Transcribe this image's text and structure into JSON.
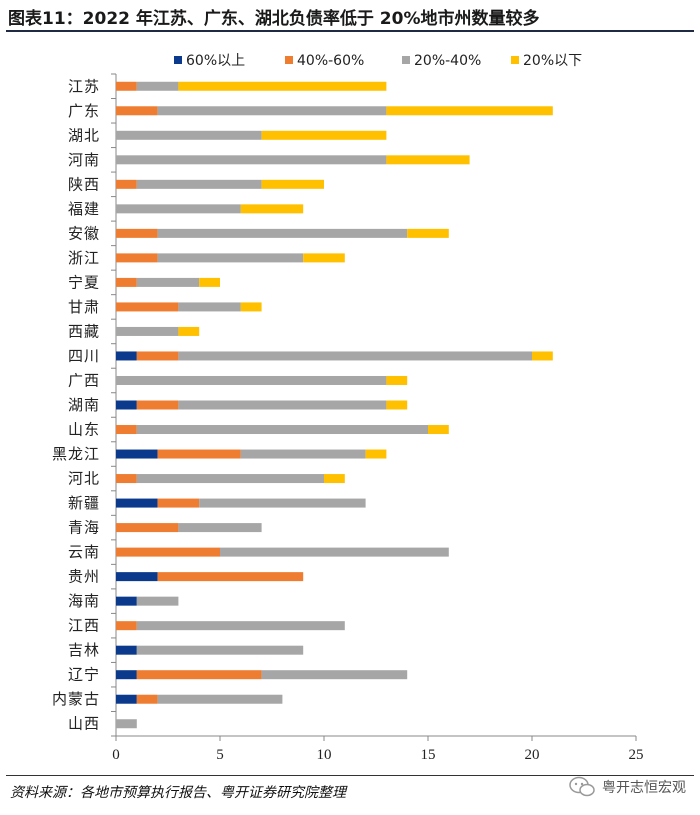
{
  "title": "图表11：2022 年江苏、广东、湖北负债率低于 20%地市州数量较多",
  "source": "资料来源：各地市预算执行报告、粤开证券研究院整理",
  "watermark": "粤开志恒宏观",
  "colors": {
    "s60": "#0b3a8c",
    "s40": "#ee7d31",
    "s20": "#a6a6a6",
    "s0": "#ffc000",
    "axis": "#888888",
    "text": "#222222"
  },
  "chart_data": {
    "type": "bar",
    "orientation": "horizontal",
    "stacked": true,
    "categories": [
      "江苏",
      "广东",
      "湖北",
      "河南",
      "陕西",
      "福建",
      "安徽",
      "浙江",
      "宁夏",
      "甘肃",
      "西藏",
      "四川",
      "广西",
      "湖南",
      "山东",
      "黑龙江",
      "河北",
      "新疆",
      "青海",
      "云南",
      "贵州",
      "海南",
      "江西",
      "吉林",
      "辽宁",
      "内蒙古",
      "山西"
    ],
    "series": [
      {
        "name": "60%以上",
        "color": "#0b3a8c",
        "values": [
          0,
          0,
          0,
          0,
          0,
          0,
          0,
          0,
          0,
          0,
          0,
          1,
          0,
          1,
          0,
          2,
          0,
          2,
          0,
          0,
          2,
          1,
          0,
          1,
          1,
          1,
          0
        ]
      },
      {
        "name": "40%-60%",
        "color": "#ee7d31",
        "values": [
          1,
          2,
          0,
          0,
          1,
          0,
          2,
          2,
          1,
          3,
          0,
          2,
          0,
          2,
          1,
          4,
          1,
          2,
          3,
          5,
          7,
          0,
          1,
          0,
          6,
          1,
          0
        ]
      },
      {
        "name": "20%-40%",
        "color": "#a6a6a6",
        "values": [
          2,
          11,
          7,
          13,
          6,
          6,
          12,
          7,
          3,
          3,
          3,
          17,
          13,
          10,
          14,
          6,
          9,
          8,
          4,
          11,
          0,
          2,
          10,
          8,
          7,
          6,
          1
        ]
      },
      {
        "name": "20%以下",
        "color": "#ffc000",
        "values": [
          10,
          8,
          6,
          4,
          3,
          3,
          2,
          2,
          1,
          1,
          1,
          1,
          1,
          1,
          1,
          1,
          1,
          0,
          0,
          0,
          0,
          0,
          0,
          0,
          0,
          0,
          0
        ]
      }
    ],
    "xlim": [
      0,
      25
    ],
    "xticks": [
      0,
      5,
      10,
      15,
      20,
      25
    ],
    "xlabel": "",
    "ylabel": "",
    "grid": false,
    "legend_position": "top"
  }
}
